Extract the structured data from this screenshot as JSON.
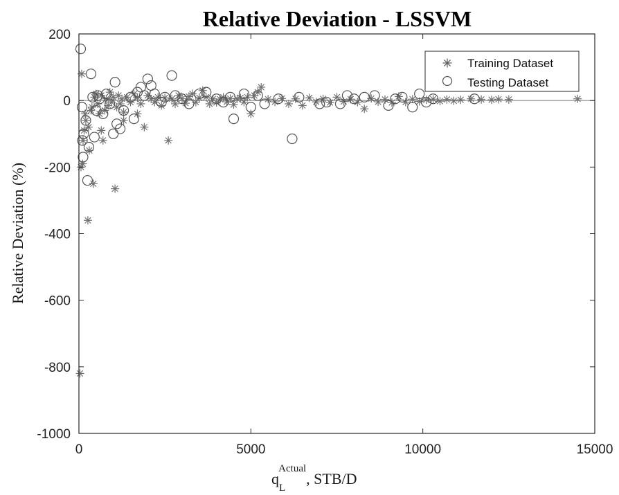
{
  "chart_data": {
    "type": "scatter",
    "title": "Relative Deviation - LSSVM",
    "xlabel": {
      "base": "q",
      "subscript": "L",
      "superscript": "Actual",
      "suffix": ", STB/D"
    },
    "ylabel": "Relative Deviation (%)",
    "xlim": [
      0,
      15000
    ],
    "ylim": [
      -1000,
      200
    ],
    "xticks": [
      0,
      5000,
      10000,
      15000
    ],
    "yticks": [
      200,
      0,
      -200,
      -400,
      -600,
      -800,
      -1000
    ],
    "grid": false,
    "legend_position": "top-right",
    "reference_line_y": 0,
    "colors": {
      "marker": "#707070",
      "axis": "#262626"
    },
    "series": [
      {
        "name": "Training Dataset",
        "marker": "asterisk",
        "points": [
          [
            30,
            -820
          ],
          [
            60,
            -200
          ],
          [
            120,
            -120
          ],
          [
            150,
            -90
          ],
          [
            200,
            -60
          ],
          [
            260,
            -360
          ],
          [
            280,
            -80
          ],
          [
            350,
            -30
          ],
          [
            380,
            -20
          ],
          [
            420,
            -250
          ],
          [
            450,
            10
          ],
          [
            500,
            20
          ],
          [
            550,
            -10
          ],
          [
            600,
            -40
          ],
          [
            650,
            15
          ],
          [
            700,
            -120
          ],
          [
            750,
            -30
          ],
          [
            800,
            5
          ],
          [
            850,
            -15
          ],
          [
            900,
            25
          ],
          [
            950,
            -5
          ],
          [
            1000,
            10
          ],
          [
            1050,
            -265
          ],
          [
            1100,
            -20
          ],
          [
            1150,
            15
          ],
          [
            1200,
            -10
          ],
          [
            1250,
            5
          ],
          [
            1300,
            -35
          ],
          [
            1400,
            10
          ],
          [
            1500,
            -5
          ],
          [
            1600,
            20
          ],
          [
            1700,
            8
          ],
          [
            1800,
            -10
          ],
          [
            1900,
            -80
          ],
          [
            2000,
            15
          ],
          [
            2100,
            5
          ],
          [
            2200,
            -5
          ],
          [
            2300,
            10
          ],
          [
            2400,
            -15
          ],
          [
            2500,
            8
          ],
          [
            2600,
            -120
          ],
          [
            2700,
            5
          ],
          [
            2800,
            -10
          ],
          [
            2900,
            15
          ],
          [
            3000,
            6
          ],
          [
            3100,
            -8
          ],
          [
            3200,
            12
          ],
          [
            3300,
            20
          ],
          [
            3400,
            -5
          ],
          [
            3500,
            8
          ],
          [
            3600,
            30
          ],
          [
            3700,
            10
          ],
          [
            3800,
            -10
          ],
          [
            3900,
            5
          ],
          [
            4000,
            -6
          ],
          [
            4100,
            4
          ],
          [
            4200,
            10
          ],
          [
            4300,
            -4
          ],
          [
            4400,
            6
          ],
          [
            4500,
            -12
          ],
          [
            4600,
            5
          ],
          [
            4700,
            8
          ],
          [
            4800,
            -5
          ],
          [
            4900,
            10
          ],
          [
            5000,
            -40
          ],
          [
            5100,
            15
          ],
          [
            5200,
            25
          ],
          [
            5300,
            40
          ],
          [
            5500,
            4
          ],
          [
            5700,
            -4
          ],
          [
            5900,
            6
          ],
          [
            6100,
            -10
          ],
          [
            6300,
            5
          ],
          [
            6500,
            -15
          ],
          [
            6700,
            8
          ],
          [
            6900,
            -4
          ],
          [
            7100,
            5
          ],
          [
            7300,
            -6
          ],
          [
            7500,
            10
          ],
          [
            7700,
            -3
          ],
          [
            7900,
            4
          ],
          [
            8100,
            -5
          ],
          [
            8300,
            -25
          ],
          [
            8500,
            6
          ],
          [
            8700,
            -4
          ],
          [
            8900,
            3
          ],
          [
            9100,
            -6
          ],
          [
            9300,
            12
          ],
          [
            9500,
            -5
          ],
          [
            9700,
            4
          ],
          [
            9900,
            -3
          ],
          [
            10100,
            2
          ],
          [
            10300,
            4
          ],
          [
            10500,
            -2
          ],
          [
            10700,
            3
          ],
          [
            10900,
            -1
          ],
          [
            11100,
            2
          ],
          [
            11400,
            5
          ],
          [
            11700,
            3
          ],
          [
            12000,
            2
          ],
          [
            12200,
            4
          ],
          [
            12500,
            3
          ],
          [
            14500,
            5
          ],
          [
            80,
            80
          ],
          [
            110,
            -190
          ],
          [
            300,
            -150
          ],
          [
            180,
            -40
          ],
          [
            650,
            -90
          ],
          [
            1300,
            -60
          ],
          [
            1700,
            -40
          ]
        ]
      },
      {
        "name": "Testing Dataset",
        "marker": "circle",
        "points": [
          [
            50,
            155
          ],
          [
            90,
            -20
          ],
          [
            100,
            -120
          ],
          [
            120,
            -170
          ],
          [
            140,
            -100
          ],
          [
            200,
            -60
          ],
          [
            250,
            -240
          ],
          [
            290,
            -140
          ],
          [
            350,
            80
          ],
          [
            400,
            10
          ],
          [
            450,
            -110
          ],
          [
            500,
            -30
          ],
          [
            550,
            15
          ],
          [
            600,
            5
          ],
          [
            700,
            -40
          ],
          [
            800,
            20
          ],
          [
            900,
            -10
          ],
          [
            1000,
            -100
          ],
          [
            1050,
            55
          ],
          [
            1100,
            -70
          ],
          [
            1200,
            -85
          ],
          [
            1300,
            -30
          ],
          [
            1500,
            10
          ],
          [
            1600,
            -55
          ],
          [
            1700,
            25
          ],
          [
            1800,
            40
          ],
          [
            1900,
            15
          ],
          [
            2000,
            65
          ],
          [
            2100,
            45
          ],
          [
            2200,
            20
          ],
          [
            2400,
            -5
          ],
          [
            2500,
            10
          ],
          [
            2700,
            75
          ],
          [
            2800,
            15
          ],
          [
            3000,
            5
          ],
          [
            3200,
            -10
          ],
          [
            3500,
            20
          ],
          [
            3700,
            25
          ],
          [
            4000,
            5
          ],
          [
            4200,
            -5
          ],
          [
            4400,
            10
          ],
          [
            4500,
            -55
          ],
          [
            4800,
            20
          ],
          [
            5000,
            -20
          ],
          [
            5200,
            15
          ],
          [
            5400,
            -10
          ],
          [
            5800,
            5
          ],
          [
            6200,
            -115
          ],
          [
            6400,
            10
          ],
          [
            7000,
            -10
          ],
          [
            7200,
            -5
          ],
          [
            7600,
            -10
          ],
          [
            7800,
            15
          ],
          [
            8000,
            5
          ],
          [
            8300,
            10
          ],
          [
            8600,
            15
          ],
          [
            9000,
            -15
          ],
          [
            9200,
            5
          ],
          [
            9400,
            10
          ],
          [
            9700,
            -20
          ],
          [
            9900,
            20
          ],
          [
            10100,
            -5
          ],
          [
            10300,
            5
          ],
          [
            11500,
            5
          ]
        ]
      }
    ]
  }
}
